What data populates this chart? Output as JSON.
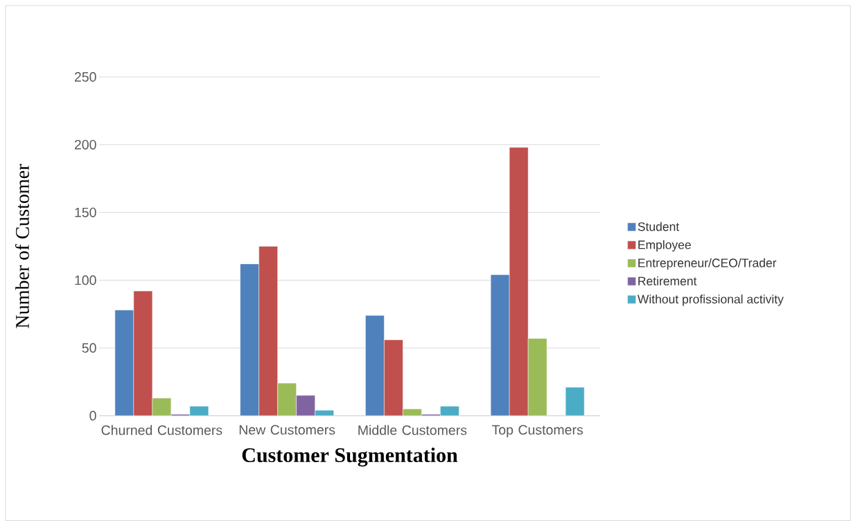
{
  "chart_data": {
    "type": "bar",
    "xlabel": "Customer Sugmentation",
    "ylabel": "Number of Customer",
    "categories": [
      "Churned Customers",
      "New Customers",
      "Middle Customers",
      "Top Customers"
    ],
    "series": [
      {
        "name": "Student",
        "color": "#4f81bd",
        "values": [
          78,
          112,
          74,
          104
        ]
      },
      {
        "name": "Employee",
        "color": "#c0504d",
        "values": [
          92,
          125,
          56,
          198
        ]
      },
      {
        "name": "Entrepreneur/CEO/Trader",
        "color": "#9bbb59",
        "values": [
          13,
          24,
          5,
          57
        ]
      },
      {
        "name": "Retirement",
        "color": "#8064a2",
        "values": [
          1,
          15,
          1,
          null
        ]
      },
      {
        "name": "Without profissional activity",
        "color": "#4bacc6",
        "values": [
          7,
          4,
          7,
          21
        ]
      }
    ],
    "ylim": [
      0,
      250
    ],
    "yticks": [
      0,
      50,
      100,
      150,
      200,
      250
    ],
    "grid": "y",
    "legend": "right"
  }
}
